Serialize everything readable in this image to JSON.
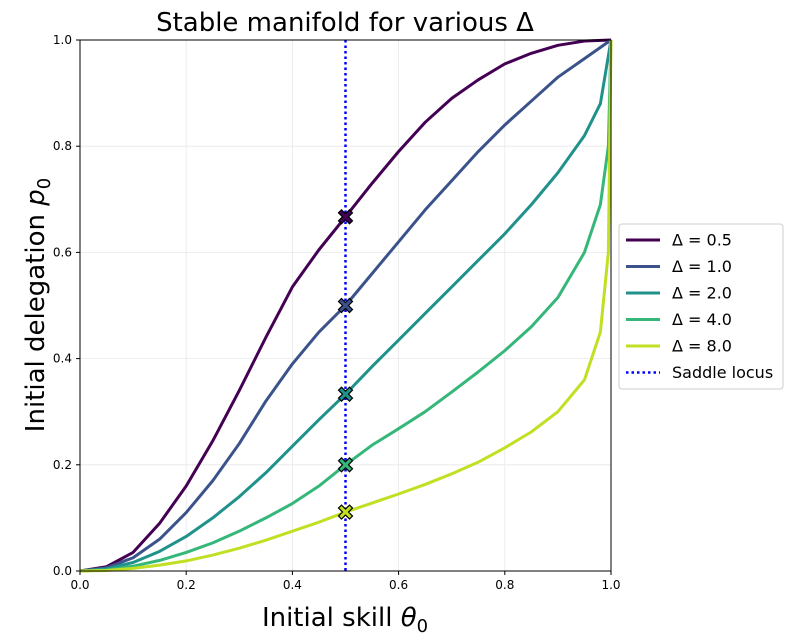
{
  "chart_data": {
    "type": "line",
    "title": "Stable manifold for various Δ",
    "xlabel_main": "Initial skill ",
    "xlabel_sym": "θ",
    "xlabel_sub": "0",
    "ylabel_main": "Initial delegation ",
    "ylabel_sym": "p",
    "ylabel_sub": "0",
    "xlim": [
      0,
      1
    ],
    "ylim": [
      0,
      1
    ],
    "x_ticks": [
      "0.0",
      "0.2",
      "0.4",
      "0.6",
      "0.8",
      "1.0"
    ],
    "y_ticks": [
      "0.0",
      "0.2",
      "0.4",
      "0.6",
      "0.8",
      "1.0"
    ],
    "grid": true,
    "legend_position": "outside-right",
    "series": [
      {
        "name": "Δ = 0.5",
        "delta": 0.5,
        "color": "#440154",
        "x": [
          0,
          0.05,
          0.1,
          0.15,
          0.2,
          0.25,
          0.3,
          0.35,
          0.4,
          0.45,
          0.5,
          0.55,
          0.6,
          0.65,
          0.7,
          0.75,
          0.8,
          0.85,
          0.9,
          0.95,
          1.0
        ],
        "y": [
          0,
          0.008,
          0.035,
          0.09,
          0.16,
          0.245,
          0.34,
          0.44,
          0.535,
          0.605,
          0.667,
          0.73,
          0.79,
          0.845,
          0.89,
          0.925,
          0.955,
          0.975,
          0.99,
          0.998,
          1.0
        ]
      },
      {
        "name": "Δ = 1.0",
        "delta": 1.0,
        "color": "#3b528b",
        "x": [
          0,
          0.05,
          0.1,
          0.15,
          0.2,
          0.25,
          0.3,
          0.35,
          0.4,
          0.45,
          0.5,
          0.55,
          0.6,
          0.65,
          0.7,
          0.75,
          0.8,
          0.85,
          0.9,
          0.95,
          1.0
        ],
        "y": [
          0,
          0.006,
          0.025,
          0.06,
          0.11,
          0.17,
          0.24,
          0.32,
          0.39,
          0.45,
          0.5,
          0.56,
          0.62,
          0.68,
          0.735,
          0.79,
          0.84,
          0.885,
          0.93,
          0.965,
          1.0
        ]
      },
      {
        "name": "Δ = 2.0",
        "delta": 2.0,
        "color": "#21918c",
        "x": [
          0,
          0.05,
          0.1,
          0.15,
          0.2,
          0.25,
          0.3,
          0.35,
          0.4,
          0.45,
          0.5,
          0.55,
          0.6,
          0.65,
          0.7,
          0.75,
          0.8,
          0.85,
          0.9,
          0.95,
          0.98,
          1.0
        ],
        "y": [
          0,
          0.004,
          0.016,
          0.037,
          0.065,
          0.1,
          0.14,
          0.185,
          0.235,
          0.285,
          0.333,
          0.385,
          0.435,
          0.485,
          0.535,
          0.585,
          0.635,
          0.69,
          0.75,
          0.82,
          0.88,
          1.0
        ]
      },
      {
        "name": "Δ = 4.0",
        "delta": 4.0,
        "color": "#35b779",
        "x": [
          0,
          0.05,
          0.1,
          0.15,
          0.2,
          0.25,
          0.3,
          0.35,
          0.4,
          0.45,
          0.5,
          0.55,
          0.6,
          0.65,
          0.7,
          0.75,
          0.8,
          0.85,
          0.9,
          0.95,
          0.98,
          0.995,
          1.0
        ],
        "y": [
          0,
          0.002,
          0.009,
          0.02,
          0.035,
          0.053,
          0.075,
          0.1,
          0.127,
          0.16,
          0.2,
          0.237,
          0.268,
          0.3,
          0.337,
          0.375,
          0.415,
          0.46,
          0.515,
          0.6,
          0.69,
          0.8,
          1.0
        ]
      },
      {
        "name": "Δ = 8.0",
        "delta": 8.0,
        "color": "#c2df23",
        "x": [
          0,
          0.05,
          0.1,
          0.15,
          0.2,
          0.25,
          0.3,
          0.35,
          0.4,
          0.45,
          0.5,
          0.55,
          0.6,
          0.65,
          0.7,
          0.75,
          0.8,
          0.85,
          0.9,
          0.95,
          0.98,
          0.995,
          1.0
        ],
        "y": [
          0,
          0.001,
          0.005,
          0.011,
          0.019,
          0.03,
          0.043,
          0.058,
          0.075,
          0.092,
          0.111,
          0.128,
          0.145,
          0.163,
          0.183,
          0.205,
          0.232,
          0.262,
          0.3,
          0.36,
          0.45,
          0.6,
          1.0
        ]
      }
    ],
    "saddle_locus": {
      "name": "Saddle locus",
      "x": 0.5,
      "color": "#0000ff",
      "style": "dotted"
    },
    "saddle_points": [
      {
        "delta": 0.5,
        "x": 0.5,
        "y": 0.667,
        "color": "#440154"
      },
      {
        "delta": 1.0,
        "x": 0.5,
        "y": 0.5,
        "color": "#3b528b"
      },
      {
        "delta": 2.0,
        "x": 0.5,
        "y": 0.333,
        "color": "#21918c"
      },
      {
        "delta": 4.0,
        "x": 0.5,
        "y": 0.2,
        "color": "#35b779"
      },
      {
        "delta": 8.0,
        "x": 0.5,
        "y": 0.111,
        "color": "#c2df23"
      }
    ]
  }
}
